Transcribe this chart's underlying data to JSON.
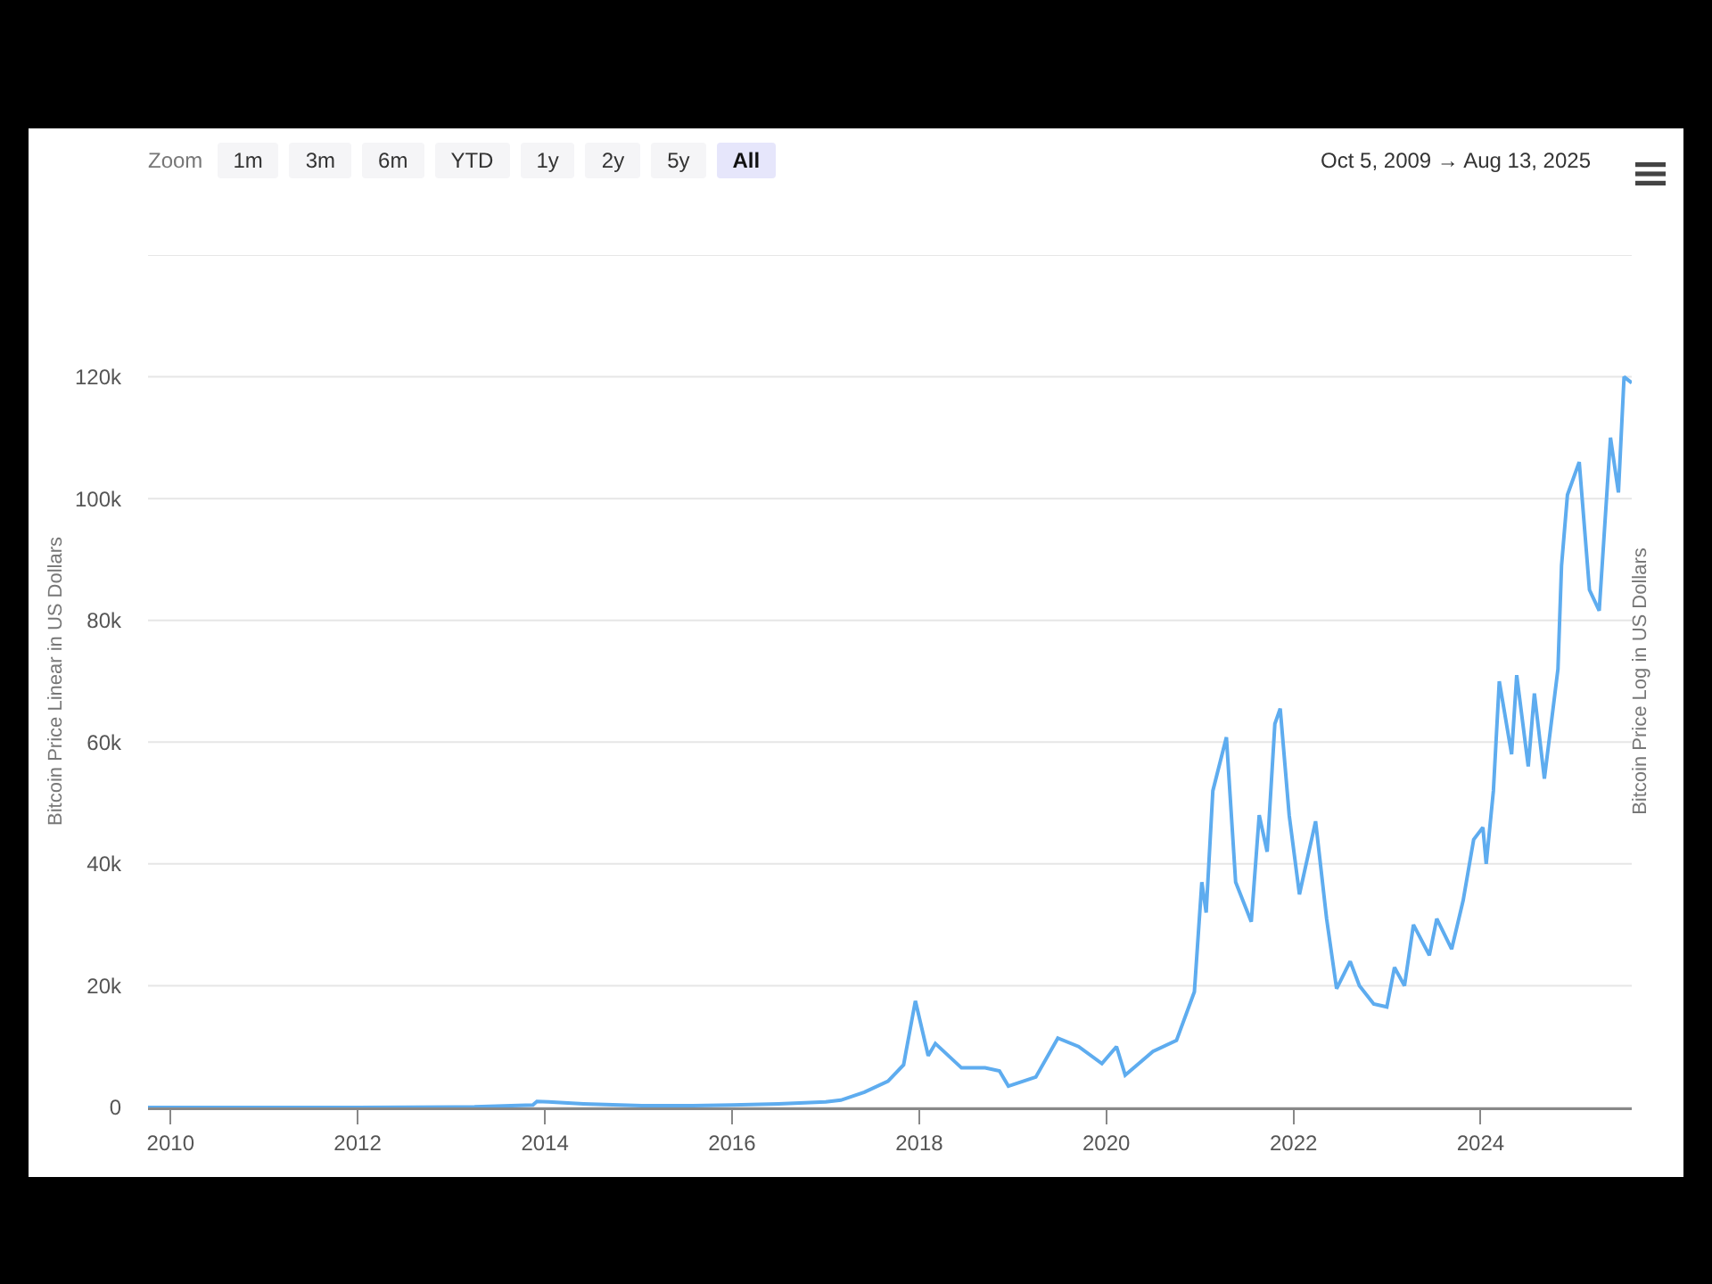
{
  "chart_data": {
    "type": "line",
    "ylabel": "Bitcoin Price Linear in US Dollars",
    "y2label": "Bitcoin Price Log in US Dollars",
    "annotations": [
      "Zoom",
      "1m",
      "3m",
      "6m",
      "YTD",
      "1y",
      "2y",
      "5y",
      "All",
      "Oct 5, 2009 → Aug 13, 2025"
    ],
    "x": [
      "2009-10-05",
      "2010-07-01",
      "2012-01-01",
      "2013-04-01",
      "2013-11-15",
      "2013-12-01",
      "2014-01-15",
      "2014-06-01",
      "2015-01-15",
      "2015-08-01",
      "2016-01-01",
      "2016-07-01",
      "2017-01-01",
      "2017-03-01",
      "2017-06-01",
      "2017-09-01",
      "2017-11-01",
      "2017-12-17",
      "2018-02-05",
      "2018-03-05",
      "2018-06-15",
      "2018-09-15",
      "2018-11-10",
      "2018-12-15",
      "2019-04-01",
      "2019-06-26",
      "2019-09-15",
      "2019-12-15",
      "2020-02-10",
      "2020-03-15",
      "2020-07-01",
      "2020-10-01",
      "2020-12-10",
      "2021-01-08",
      "2021-01-25",
      "2021-02-20",
      "2021-04-14",
      "2021-05-20",
      "2021-07-20",
      "2021-08-20",
      "2021-09-20",
      "2021-10-20",
      "2021-11-10",
      "2021-12-15",
      "2022-01-24",
      "2022-03-28",
      "2022-05-10",
      "2022-06-18",
      "2022-08-10",
      "2022-09-15",
      "2022-11-10",
      "2022-12-31",
      "2023-01-30",
      "2023-03-10",
      "2023-04-14",
      "2023-06-15",
      "2023-07-14",
      "2023-09-10",
      "2023-10-25",
      "2023-12-05",
      "2024-01-10",
      "2024-01-23",
      "2024-02-20",
      "2024-03-14",
      "2024-05-01",
      "2024-05-21",
      "2024-07-05",
      "2024-07-29",
      "2024-09-06",
      "2024-10-29",
      "2024-11-12",
      "2024-12-05",
      "2025-01-20",
      "2025-03-01",
      "2025-04-08",
      "2025-05-22",
      "2025-06-22",
      "2025-07-14",
      "2025-08-13"
    ],
    "series": [
      {
        "color": "#5eacef",
        "values": [
          0,
          0,
          0,
          100,
          400,
          1000,
          900,
          600,
          300,
          300,
          400,
          600,
          900,
          1200,
          2500,
          4300,
          7000,
          17500,
          8500,
          10500,
          6500,
          6500,
          6000,
          3500,
          5000,
          11400,
          10000,
          7200,
          10000,
          5300,
          9200,
          11000,
          19000,
          37000,
          32000,
          52000,
          60800,
          37000,
          30500,
          48000,
          42000,
          63000,
          65500,
          48000,
          35000,
          47000,
          31000,
          19500,
          24000,
          20000,
          17000,
          16500,
          23000,
          20000,
          30000,
          25000,
          31000,
          26000,
          34000,
          44000,
          46000,
          40000,
          52000,
          70000,
          58000,
          71000,
          56000,
          68000,
          54000,
          72000,
          89000,
          100600,
          106000,
          85000,
          81600,
          110000,
          101000,
          120000,
          119000
        ]
      }
    ],
    "xlim": [
      "2009-10-05",
      "2025-08-13"
    ],
    "xticks": [
      {
        "value": "2010-01-01",
        "label": "2010"
      },
      {
        "value": "2012-01-01",
        "label": "2012"
      },
      {
        "value": "2014-01-01",
        "label": "2014"
      },
      {
        "value": "2016-01-01",
        "label": "2016"
      },
      {
        "value": "2018-01-01",
        "label": "2018"
      },
      {
        "value": "2020-01-01",
        "label": "2020"
      },
      {
        "value": "2022-01-01",
        "label": "2022"
      },
      {
        "value": "2024-01-01",
        "label": "2024"
      }
    ],
    "ylim": [
      0,
      140000
    ],
    "yticks": [
      {
        "value": 0,
        "label": "0"
      },
      {
        "value": 20000,
        "label": "20k"
      },
      {
        "value": 40000,
        "label": "40k"
      },
      {
        "value": 60000,
        "label": "60k"
      },
      {
        "value": 80000,
        "label": "80k"
      },
      {
        "value": 100000,
        "label": "100k"
      },
      {
        "value": 120000,
        "label": "120k"
      },
      {
        "value": 140000,
        "label": null
      }
    ],
    "grid": "y",
    "legend": false,
    "marker": "none",
    "line_style": "solid"
  }
}
